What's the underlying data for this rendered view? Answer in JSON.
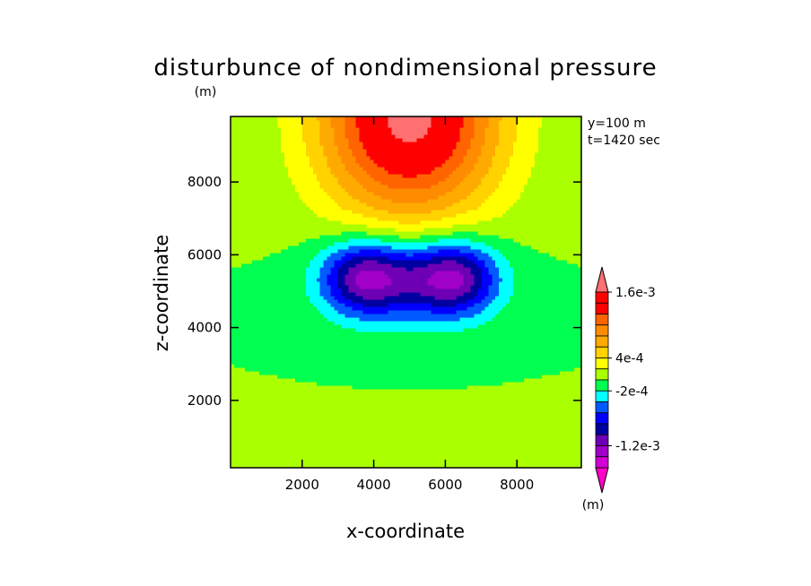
{
  "chart_data": {
    "type": "heatmap",
    "title": "disturbunce of nondimensional pressure",
    "title_unit": "(m)",
    "xlabel": "x-coordinate",
    "ylabel": "z-coordinate",
    "xlim": [
      0,
      9800
    ],
    "ylim": [
      150,
      9800
    ],
    "xticks": [
      2000,
      4000,
      6000,
      8000
    ],
    "yticks": [
      2000,
      4000,
      6000,
      8000
    ],
    "info": [
      "y=100 m",
      "t=1420 sec"
    ],
    "colorbar": {
      "unit": "(m)",
      "levels": [
        -0.0016,
        -0.0014,
        -0.0012,
        -0.001,
        -0.0008,
        -0.0006,
        -0.0004,
        -0.0002,
        0,
        0.0002,
        0.0004,
        0.0006,
        0.0008,
        0.001,
        0.0012,
        0.0014,
        0.0016
      ],
      "colors": [
        "#ff00c8",
        "#d200d2",
        "#a000c8",
        "#6e00b4",
        "#0000a0",
        "#0000ff",
        "#005aff",
        "#00ffff",
        "#00ff50",
        "#aaff00",
        "#ffff00",
        "#ffd200",
        "#ffaa00",
        "#ff8c00",
        "#ff6400",
        "#ff0000",
        "#ff0000",
        "#ff7070"
      ],
      "labeled": [
        {
          "value": 0.0016,
          "text": "1.6e-3"
        },
        {
          "value": 0.0004,
          "text": "4e-4"
        },
        {
          "value": -0.0002,
          "text": "-2e-4"
        },
        {
          "value": -0.0012,
          "text": "-1.2e-3"
        }
      ]
    },
    "field": {
      "background": 0,
      "features": [
        {
          "kind": "high",
          "x0": 5000,
          "z0": 9800,
          "sx": 2500,
          "sz": 2800,
          "amp": 0.0017
        },
        {
          "kind": "low",
          "x0": 3750,
          "z0": 5400,
          "sx": 1200,
          "sz": 1000,
          "amp": 0.00095
        },
        {
          "kind": "low",
          "x0": 6250,
          "z0": 5400,
          "sx": 1200,
          "sz": 1000,
          "amp": 0.00095
        },
        {
          "kind": "low",
          "x0": 5000,
          "z0": 5300,
          "sx": 2200,
          "sz": 1200,
          "amp": 0.0006
        }
      ]
    }
  }
}
